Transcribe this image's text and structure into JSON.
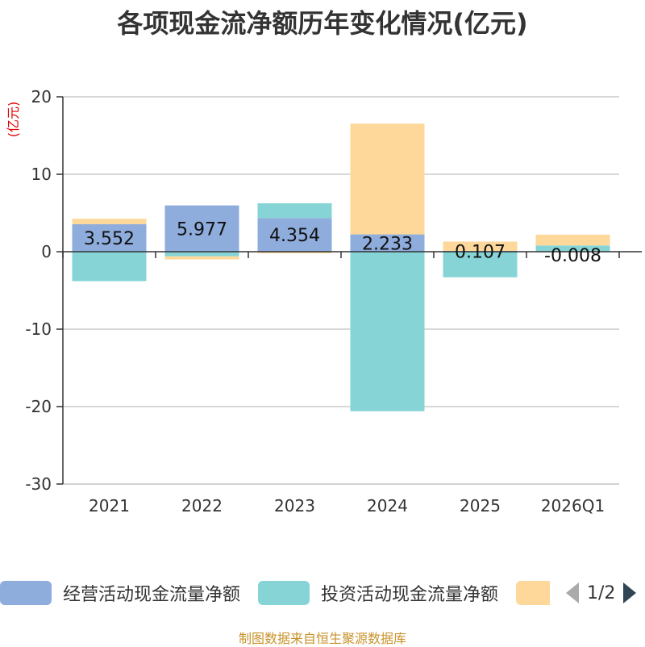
{
  "title": "各项现金流净额历年变化情况(亿元)",
  "unit": "(亿元)",
  "footer": "制图数据来自恒生聚源数据库",
  "colors": {
    "operating": "#8eacdc",
    "investing": "#86d4d6",
    "financing": "#fdd89a",
    "grid": "#cccccc",
    "axis": "#333333"
  },
  "legend": {
    "items": [
      {
        "label": "经营活动现金流量净额",
        "color": "#8eacdc"
      },
      {
        "label": "投资活动现金流量净额",
        "color": "#86d4d6"
      },
      {
        "label": "",
        "color": "#fdd89a"
      }
    ],
    "page": "1/2"
  },
  "chart_data": {
    "type": "bar",
    "stacked": true,
    "title": "各项现金流净额历年变化情况(亿元)",
    "ylabel": "(亿元)",
    "ylim": [
      -30,
      20
    ],
    "yticks": [
      20,
      10,
      0,
      -10,
      -20,
      -30
    ],
    "categories": [
      "2021",
      "2022",
      "2023",
      "2024",
      "2025",
      "2026Q1"
    ],
    "series": [
      {
        "name": "经营活动现金流量净额",
        "values": [
          3.552,
          5.977,
          4.354,
          2.233,
          0.107,
          -0.008
        ]
      },
      {
        "name": "投资活动现金流量净额",
        "values": [
          -3.8,
          -0.6,
          1.9,
          -20.6,
          -3.3,
          0.8
        ]
      },
      {
        "name": "",
        "values": [
          0.7,
          -0.4,
          -0.2,
          14.3,
          1.2,
          1.4
        ]
      }
    ],
    "data_labels": [
      "3.552",
      "5.977",
      "4.354",
      "2.233",
      "0.107",
      "-0.008"
    ]
  }
}
